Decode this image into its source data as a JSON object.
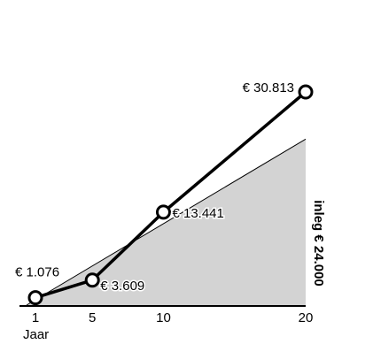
{
  "chart_data": {
    "type": "line",
    "x": [
      1,
      5,
      10,
      20
    ],
    "xlabel": "Jaar",
    "x_tick_labels": [
      "1",
      "5",
      "10",
      "20"
    ],
    "xlim": [
      1,
      20
    ],
    "ylim": [
      0,
      30813
    ],
    "series": [
      {
        "values": [
          1076,
          3609,
          13441,
          30813
        ],
        "labels": [
          "€ 1.076",
          "€ 3.609",
          "€ 13.441",
          "€ 30.813"
        ]
      }
    ],
    "area": {
      "label": "inleg € 24.000",
      "values": [
        0,
        24000
      ]
    },
    "grid": false,
    "colors": {
      "area_fill": "#d3d3d3",
      "line": "#000000",
      "marker_fill": "#ffffff",
      "background": "#ffffff"
    }
  }
}
